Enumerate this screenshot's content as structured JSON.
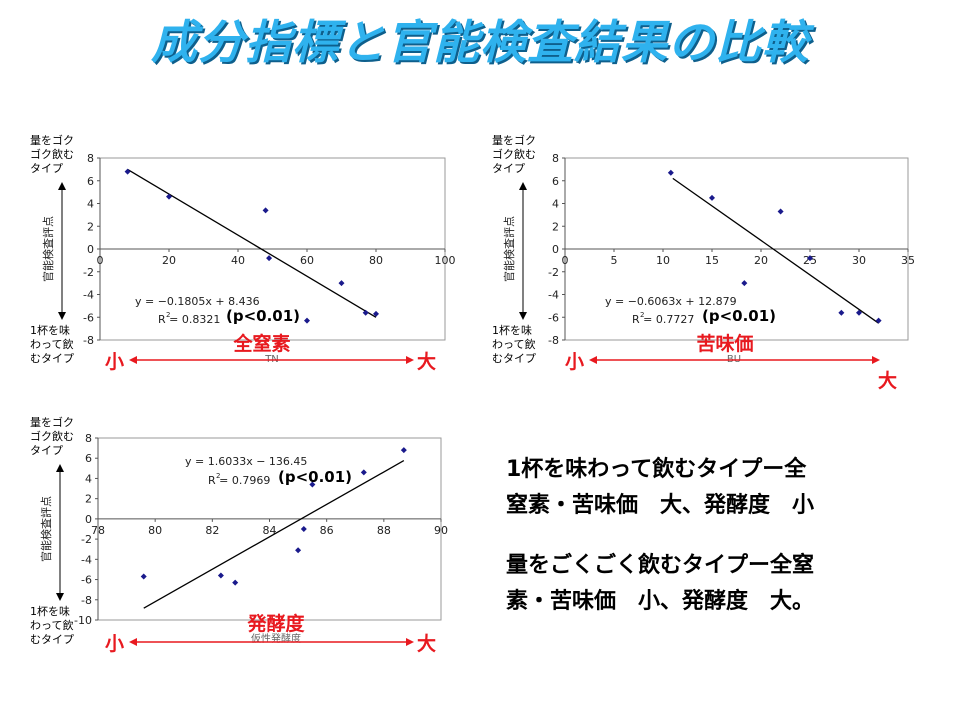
{
  "title": "成分指標と官能検査結果の比較",
  "summary": {
    "line1a": "1杯を味わって飲むタイプー全",
    "line1b": "窒素・苦味価　大、発酵度　小",
    "line2a": "量をごくごく飲むタイプー全窒",
    "line2b": "素・苦味価　小、発酵度　大。"
  },
  "colors": {
    "title": "#2fb2ee",
    "accent": "#e8191f",
    "point": "#1a1a8c"
  },
  "chart_data": [
    {
      "type": "scatter",
      "title": "",
      "xlabel": "TN",
      "ylabel": "官能検査評点",
      "xlim": [
        0,
        100
      ],
      "ylim": [
        -8,
        8
      ],
      "xticks": [
        "0",
        "20",
        "40",
        "60",
        "80",
        "100"
      ],
      "yticks": [
        "8",
        "6",
        "4",
        "2",
        "0",
        "-2",
        "-4",
        "-6",
        "-8"
      ],
      "points": [
        {
          "x": 8,
          "y": 6.8
        },
        {
          "x": 20,
          "y": 4.6
        },
        {
          "x": 48,
          "y": 3.4
        },
        {
          "x": 49,
          "y": -0.8
        },
        {
          "x": 60,
          "y": -6.3
        },
        {
          "x": 70,
          "y": -3.0
        },
        {
          "x": 77,
          "y": -5.6
        },
        {
          "x": 80,
          "y": -5.7
        }
      ],
      "trendline": {
        "slope": -0.1805,
        "intercept": 8.436,
        "x_range": [
          8,
          80
        ]
      },
      "equation": "y = −0.1805x + 8.436",
      "r2": "R  = 0.8321",
      "r2_sup": "2",
      "p_value": "(p<0.01)",
      "factor_label": "全窒素",
      "top_label": [
        "量をゴク",
        "ゴク飲む",
        "タイプ"
      ],
      "bottom_label": [
        "1杯を味",
        "わって飲",
        "むタイプ"
      ],
      "small_label": "小",
      "large_label": "大"
    },
    {
      "type": "scatter",
      "title": "",
      "xlabel": "BU",
      "ylabel": "官能検査評点",
      "xlim": [
        0,
        35
      ],
      "ylim": [
        -8,
        8
      ],
      "xticks": [
        "0",
        "5",
        "10",
        "15",
        "20",
        "25",
        "30",
        "35"
      ],
      "yticks": [
        "8",
        "6",
        "4",
        "2",
        "0",
        "-2",
        "-4",
        "-6",
        "-8"
      ],
      "points": [
        {
          "x": 10.8,
          "y": 6.7
        },
        {
          "x": 15,
          "y": 4.5
        },
        {
          "x": 18.3,
          "y": -3.0
        },
        {
          "x": 22,
          "y": 3.3
        },
        {
          "x": 25,
          "y": -0.8
        },
        {
          "x": 28.2,
          "y": -5.6
        },
        {
          "x": 30,
          "y": -5.6
        },
        {
          "x": 32,
          "y": -6.3
        }
      ],
      "trendline": {
        "slope": -0.6063,
        "intercept": 12.879,
        "x_range": [
          11,
          32
        ]
      },
      "equation": "y = −0.6063x + 12.879",
      "r2": "R  = 0.7727",
      "r2_sup": "2",
      "p_value": "(p<0.01)",
      "factor_label": "苦味価",
      "top_label": [
        "量をゴク",
        "ゴク飲む",
        "タイプ"
      ],
      "bottom_label": [
        "1杯を味",
        "わって飲",
        "むタイプ"
      ],
      "small_label": "小",
      "large_label": "大"
    },
    {
      "type": "scatter",
      "title": "",
      "xlabel": "仮性発酵度",
      "ylabel": "官能検査評点",
      "xlim": [
        78,
        90
      ],
      "ylim": [
        -10,
        8
      ],
      "xticks": [
        "78",
        "80",
        "82",
        "84",
        "86",
        "88",
        "90"
      ],
      "yticks": [
        "8",
        "6",
        "4",
        "2",
        "0",
        "-2",
        "-4",
        "-6",
        "-8",
        "-10"
      ],
      "points": [
        {
          "x": 79.6,
          "y": -5.7
        },
        {
          "x": 82.3,
          "y": -5.6
        },
        {
          "x": 82.8,
          "y": -6.3
        },
        {
          "x": 85.0,
          "y": -3.1
        },
        {
          "x": 85.2,
          "y": -1.0
        },
        {
          "x": 85.5,
          "y": 3.4
        },
        {
          "x": 87.3,
          "y": 4.6
        },
        {
          "x": 88.7,
          "y": 6.8
        }
      ],
      "trendline": {
        "slope": 1.6033,
        "intercept": -136.45,
        "x_range": [
          79.6,
          88.7
        ]
      },
      "equation": "y = 1.6033x − 136.45",
      "r2": "R  = 0.7969",
      "r2_sup": "2",
      "p_value": "(p<0.01)",
      "factor_label": "発酵度",
      "top_label": [
        "量をゴク",
        "ゴク飲む",
        "タイプ"
      ],
      "bottom_label": [
        "1杯を味",
        "わって飲",
        "むタイプ"
      ],
      "small_label": "小",
      "large_label": "大"
    }
  ]
}
